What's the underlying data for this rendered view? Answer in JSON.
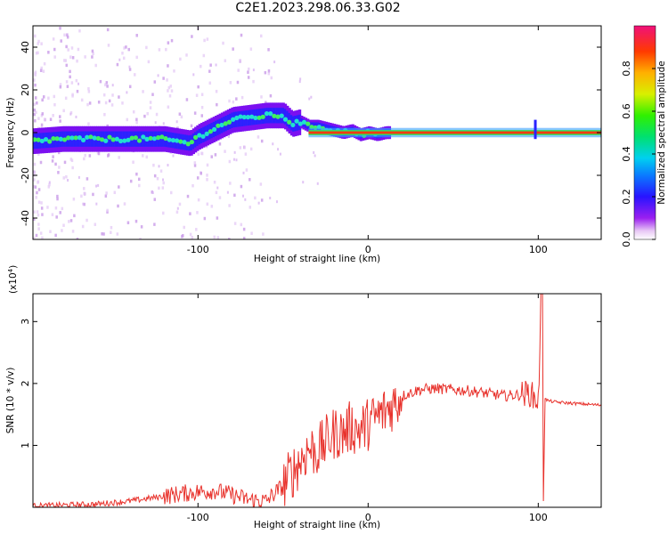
{
  "title": "C2E1.2023.298.06.33.G02",
  "chart_data": [
    {
      "type": "heatmap",
      "xlabel": "Height of straight line (km)",
      "ylabel": "Frequency (Hz)",
      "xlim": [
        -197,
        137
      ],
      "ylim": [
        -50,
        50
      ],
      "x_ticks": [
        -100,
        0,
        100
      ],
      "y_ticks": [
        40,
        20,
        0,
        -20,
        -40
      ],
      "colorbar": {
        "label": "Normalized spectral amplitude",
        "range": [
          0,
          1
        ],
        "ticks": [
          "0.0",
          "0.2",
          "0.4",
          "0.6",
          "0.8"
        ]
      },
      "ridge": {
        "x": [
          -197,
          -180,
          -160,
          -140,
          -120,
          -105,
          -100,
          -90,
          -80,
          -70,
          -60,
          -50,
          -45,
          -40,
          -35,
          -30,
          -25,
          -20,
          -15,
          -10,
          -5,
          0,
          5,
          10,
          40,
          80,
          95,
          98,
          100,
          137
        ],
        "frequency": [
          -4,
          -3,
          -3,
          -3,
          -3,
          -5,
          -2,
          2,
          6,
          7,
          8,
          8,
          4,
          5,
          3,
          3,
          2,
          1,
          0,
          1,
          -1,
          0,
          -1,
          0,
          0,
          0,
          0,
          -1,
          0,
          0
        ]
      }
    },
    {
      "type": "line",
      "xlabel": "Height of straight line (km)",
      "ylabel": "SNR (10 * v/v)",
      "y_multiplier": "(x10",
      "y_multiplier_exp": "4",
      "xlim": [
        -197,
        137
      ],
      "ylim": [
        0,
        3.45
      ],
      "x_ticks": [
        -100,
        0,
        100
      ],
      "y_ticks": [
        1,
        2,
        3
      ],
      "color": "#e8322c",
      "series": [
        {
          "x": [
            -197,
            -160,
            -140,
            -120,
            -110,
            -100,
            -90,
            -80,
            -70,
            -60,
            -50,
            -45,
            -40,
            -35,
            -30,
            -25,
            -20,
            -15,
            -10,
            -5,
            0,
            5,
            10,
            20,
            30,
            40,
            60,
            80,
            90,
            95,
            100,
            102,
            103,
            104,
            106,
            110,
            120,
            137
          ],
          "y": [
            0.02,
            0.05,
            0.1,
            0.18,
            0.22,
            0.25,
            0.27,
            0.2,
            0.12,
            0.1,
            0.35,
            0.55,
            0.75,
            0.95,
            0.9,
            1.05,
            1.2,
            1.2,
            1.3,
            1.25,
            1.35,
            1.45,
            1.55,
            1.8,
            1.9,
            1.92,
            1.88,
            1.8,
            1.82,
            1.85,
            1.7,
            3.45,
            0.1,
            1.75,
            1.72,
            1.7,
            1.68,
            1.65
          ]
        }
      ]
    }
  ]
}
